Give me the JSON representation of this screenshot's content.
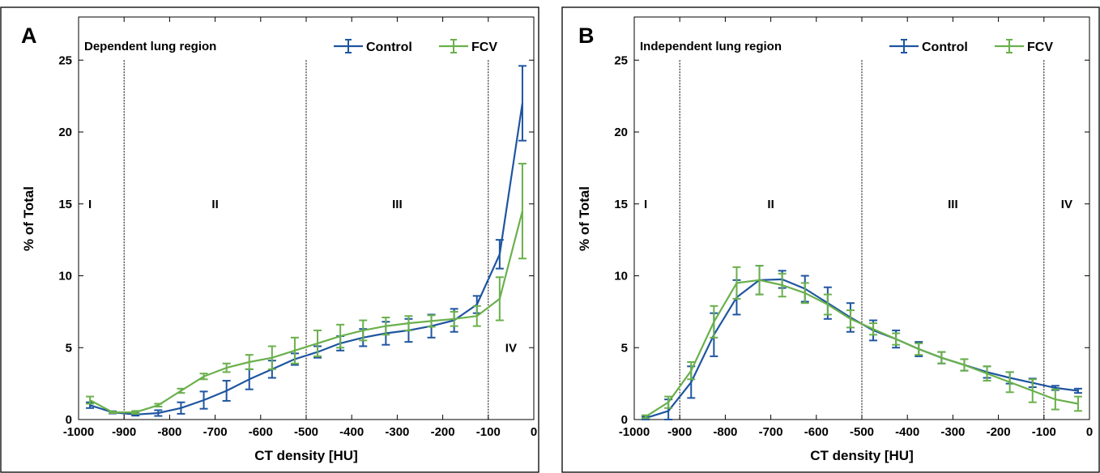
{
  "chart_data": [
    {
      "type": "line",
      "panel_label": "A",
      "title": "Dependent lung region",
      "xlabel": "CT density [HU]",
      "ylabel": "% of Total",
      "xlim": [
        -1000,
        0
      ],
      "ylim": [
        0,
        28
      ],
      "xticks": [
        -1000,
        -900,
        -800,
        -700,
        -600,
        -500,
        -400,
        -300,
        -200,
        -100,
        0
      ],
      "yticks": [
        0,
        5,
        10,
        15,
        20,
        25
      ],
      "grid": false,
      "legend_position": "top-right",
      "region_boundaries": [
        -900,
        -500,
        -100
      ],
      "regions": [
        {
          "label": "I",
          "x": -975,
          "y": 15
        },
        {
          "label": "II",
          "x": -700,
          "y": 15
        },
        {
          "label": "III",
          "x": -300,
          "y": 15
        },
        {
          "label": "IV",
          "x": -50,
          "y": 5
        }
      ],
      "series": [
        {
          "name": "Control",
          "color": "#1f55a0",
          "x": [
            -975,
            -925,
            -875,
            -825,
            -775,
            -725,
            -675,
            -625,
            -575,
            -525,
            -475,
            -425,
            -375,
            -325,
            -275,
            -225,
            -175,
            -125,
            -75,
            -25
          ],
          "y": [
            1.0,
            0.5,
            0.35,
            0.45,
            0.8,
            1.35,
            2.0,
            2.8,
            3.5,
            4.2,
            4.7,
            5.3,
            5.7,
            6.0,
            6.2,
            6.5,
            6.9,
            8.0,
            11.5,
            22.0
          ],
          "err": [
            0.2,
            0.08,
            0.08,
            0.2,
            0.4,
            0.6,
            0.7,
            0.7,
            0.6,
            0.4,
            0.4,
            0.5,
            0.6,
            0.8,
            0.8,
            0.8,
            0.8,
            0.6,
            1.0,
            2.6
          ]
        },
        {
          "name": "FCV",
          "color": "#6ab04c",
          "x": [
            -975,
            -925,
            -875,
            -825,
            -775,
            -725,
            -675,
            -625,
            -575,
            -525,
            -475,
            -425,
            -375,
            -325,
            -275,
            -225,
            -175,
            -125,
            -75,
            -25
          ],
          "y": [
            1.35,
            0.5,
            0.5,
            1.0,
            2.0,
            3.0,
            3.6,
            4.0,
            4.3,
            4.8,
            5.3,
            5.8,
            6.2,
            6.5,
            6.7,
            6.85,
            7.0,
            7.2,
            8.4,
            14.5
          ],
          "err": [
            0.25,
            0.05,
            0.1,
            0.1,
            0.15,
            0.2,
            0.3,
            0.5,
            0.8,
            0.9,
            0.9,
            0.8,
            0.7,
            0.6,
            0.5,
            0.4,
            0.5,
            0.7,
            1.5,
            3.3
          ]
        }
      ]
    },
    {
      "type": "line",
      "panel_label": "B",
      "title": "Independent lung region",
      "xlabel": "CT density [HU]",
      "ylabel": "% of Total",
      "xlim": [
        -1000,
        0
      ],
      "ylim": [
        0,
        28
      ],
      "xticks": [
        -1000,
        -900,
        -800,
        -700,
        -600,
        -500,
        -400,
        -300,
        -200,
        -100,
        0
      ],
      "yticks": [
        0,
        5,
        10,
        15,
        20,
        25
      ],
      "grid": false,
      "legend_position": "top-right",
      "region_boundaries": [
        -900,
        -500,
        -100
      ],
      "regions": [
        {
          "label": "I",
          "x": -975,
          "y": 15
        },
        {
          "label": "II",
          "x": -700,
          "y": 15
        },
        {
          "label": "III",
          "x": -300,
          "y": 15
        },
        {
          "label": "IV",
          "x": -50,
          "y": 15
        }
      ],
      "series": [
        {
          "name": "Control",
          "color": "#1f55a0",
          "x": [
            -975,
            -925,
            -875,
            -825,
            -775,
            -725,
            -675,
            -625,
            -575,
            -525,
            -475,
            -425,
            -375,
            -325,
            -275,
            -225,
            -175,
            -125,
            -75,
            -25
          ],
          "y": [
            0.1,
            0.6,
            2.6,
            5.9,
            8.5,
            9.7,
            9.75,
            9.1,
            8.1,
            7.1,
            6.2,
            5.6,
            4.9,
            4.3,
            3.8,
            3.3,
            2.9,
            2.55,
            2.2,
            2.0
          ],
          "err": [
            0.1,
            0.8,
            1.1,
            1.5,
            1.2,
            1.0,
            0.6,
            0.9,
            1.1,
            1.0,
            0.7,
            0.6,
            0.5,
            0.4,
            0.4,
            0.4,
            0.4,
            0.3,
            0.15,
            0.15
          ]
        },
        {
          "name": "FCV",
          "color": "#6ab04c",
          "x": [
            -975,
            -925,
            -875,
            -825,
            -775,
            -725,
            -675,
            -625,
            -575,
            -525,
            -475,
            -425,
            -375,
            -325,
            -275,
            -225,
            -175,
            -125,
            -75,
            -25
          ],
          "y": [
            0.2,
            1.2,
            3.4,
            6.8,
            9.5,
            9.7,
            9.35,
            8.8,
            8.0,
            7.0,
            6.3,
            5.6,
            4.9,
            4.3,
            3.8,
            3.2,
            2.6,
            2.0,
            1.4,
            1.1
          ],
          "err": [
            0.1,
            0.4,
            0.6,
            1.1,
            1.1,
            1.0,
            0.8,
            0.7,
            0.7,
            0.6,
            0.4,
            0.4,
            0.4,
            0.4,
            0.4,
            0.5,
            0.7,
            0.8,
            0.7,
            0.5
          ]
        }
      ]
    }
  ]
}
